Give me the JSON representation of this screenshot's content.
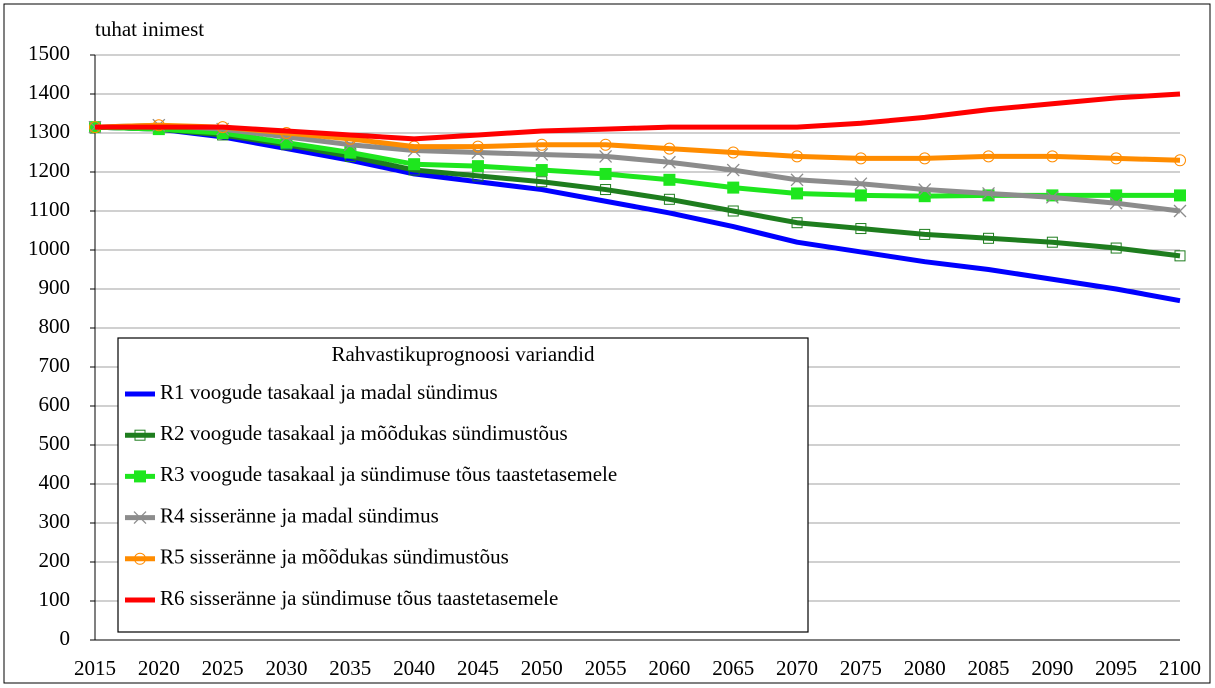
{
  "chart_data": {
    "type": "line",
    "y_label": "tuhat inimest",
    "legend_title": "Rahvastikuprognoosi variandid",
    "categories": [
      "2015",
      "2020",
      "2025",
      "2030",
      "2035",
      "2040",
      "2045",
      "2050",
      "2055",
      "2060",
      "2065",
      "2070",
      "2075",
      "2080",
      "2085",
      "2090",
      "2095",
      "2100"
    ],
    "ylim": [
      0,
      1500
    ],
    "yticks": [
      0,
      100,
      200,
      300,
      400,
      500,
      600,
      700,
      800,
      900,
      1000,
      1100,
      1200,
      1300,
      1400,
      1500
    ],
    "grid": true,
    "series": [
      {
        "name": "R1 voogude tasakaal ja madal sündimus",
        "color": "#0000ff",
        "marker": "none",
        "values": [
          1315,
          1310,
          1290,
          1260,
          1230,
          1195,
          1175,
          1155,
          1125,
          1095,
          1060,
          1020,
          995,
          970,
          950,
          925,
          900,
          870
        ]
      },
      {
        "name": "R2 voogude tasakaal ja mõõdukas sündimustõus",
        "color": "#1e7d1e",
        "marker": "square-open",
        "values": [
          1315,
          1310,
          1295,
          1270,
          1240,
          1205,
          1190,
          1175,
          1155,
          1130,
          1100,
          1070,
          1055,
          1040,
          1030,
          1020,
          1005,
          985
        ]
      },
      {
        "name": "R3 voogude tasakaal ja sündimuse tõus taastetasemele",
        "color": "#1ee61e",
        "marker": "square",
        "values": [
          1315,
          1310,
          1300,
          1275,
          1250,
          1220,
          1215,
          1205,
          1195,
          1180,
          1160,
          1145,
          1140,
          1138,
          1140,
          1140,
          1140,
          1140
        ]
      },
      {
        "name": "R4 sisseränne ja madal sündimus",
        "color": "#8c8c8c",
        "marker": "x",
        "values": [
          1315,
          1320,
          1310,
          1290,
          1270,
          1255,
          1250,
          1245,
          1240,
          1225,
          1205,
          1180,
          1170,
          1155,
          1145,
          1135,
          1120,
          1100
        ]
      },
      {
        "name": "R5 sisseränne ja mõõdukas sündimustõus",
        "color": "#ff8c00",
        "marker": "circle-open",
        "values": [
          1315,
          1320,
          1315,
          1300,
          1285,
          1265,
          1265,
          1270,
          1270,
          1260,
          1250,
          1240,
          1235,
          1235,
          1240,
          1240,
          1235,
          1230
        ]
      },
      {
        "name": "R6 sisseränne ja sündimuse tõus taastetasemele",
        "color": "#ff0000",
        "marker": "none",
        "values": [
          1315,
          1315,
          1315,
          1305,
          1295,
          1285,
          1295,
          1305,
          1310,
          1315,
          1315,
          1315,
          1325,
          1340,
          1360,
          1375,
          1390,
          1400
        ]
      }
    ]
  }
}
